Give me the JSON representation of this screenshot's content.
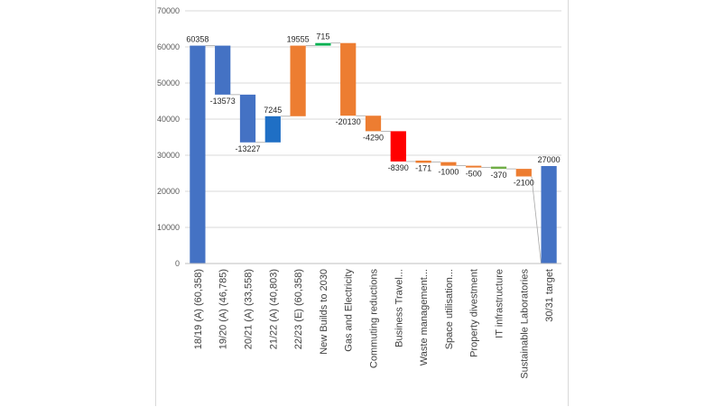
{
  "chart_data": {
    "type": "waterfall",
    "title": "",
    "xlabel": "",
    "ylabel": "",
    "ylim": [
      0,
      70000
    ],
    "yticks": [
      0,
      10000,
      20000,
      30000,
      40000,
      50000,
      60000,
      70000
    ],
    "grid": true,
    "legend": "none",
    "categories": [
      "18/19 (A) (60,358)",
      "19/20 (A) (46,785)",
      "20/21 (A) (33,558)",
      "21/22 (A) (40,803)",
      "22/23 (E) (60,358)",
      "New Builds to 2030",
      "Gas and Electricity",
      "Commuting reductions",
      "Business Travel...",
      "Waste management...",
      "Space utilisation...",
      "Property divestment",
      "IT infrastructure",
      "Sustainable Laboratories",
      "30/31 target"
    ],
    "bars": [
      {
        "start": 0,
        "end": 60358,
        "label": "60358",
        "color": "#4472c4"
      },
      {
        "start": 60358,
        "end": 46785,
        "label": "-13573",
        "color": "#4472c4"
      },
      {
        "start": 46785,
        "end": 33558,
        "label": "-13227",
        "color": "#4472c4"
      },
      {
        "start": 33558,
        "end": 40803,
        "label": "7245",
        "color": "#1f6fc5"
      },
      {
        "start": 40803,
        "end": 60358,
        "label": "19555",
        "color": "#ed7d31"
      },
      {
        "start": 60358,
        "end": 61073,
        "label": "715",
        "color": "#00b050"
      },
      {
        "start": 61073,
        "end": 40943,
        "label": "-20130",
        "color": "#ed7d31"
      },
      {
        "start": 40943,
        "end": 36653,
        "label": "-4290",
        "color": "#ed7d31"
      },
      {
        "start": 36653,
        "end": 28263,
        "label": "-8390",
        "color": "#ff0000"
      },
      {
        "start": 28263,
        "end": 28092,
        "label": "-171",
        "color": "#ed7d31"
      },
      {
        "start": 28092,
        "end": 27092,
        "label": "-1000",
        "color": "#ed7d31"
      },
      {
        "start": 27092,
        "end": 26592,
        "label": "-500",
        "color": "#ed7d31"
      },
      {
        "start": 26592,
        "end": 26222,
        "label": "-370",
        "color": "#70ad47"
      },
      {
        "start": 26222,
        "end": 24122,
        "label": "-2100",
        "color": "#ed7d31"
      },
      {
        "start": 0,
        "end": 27000,
        "label": "27000",
        "color": "#4472c4"
      }
    ]
  }
}
